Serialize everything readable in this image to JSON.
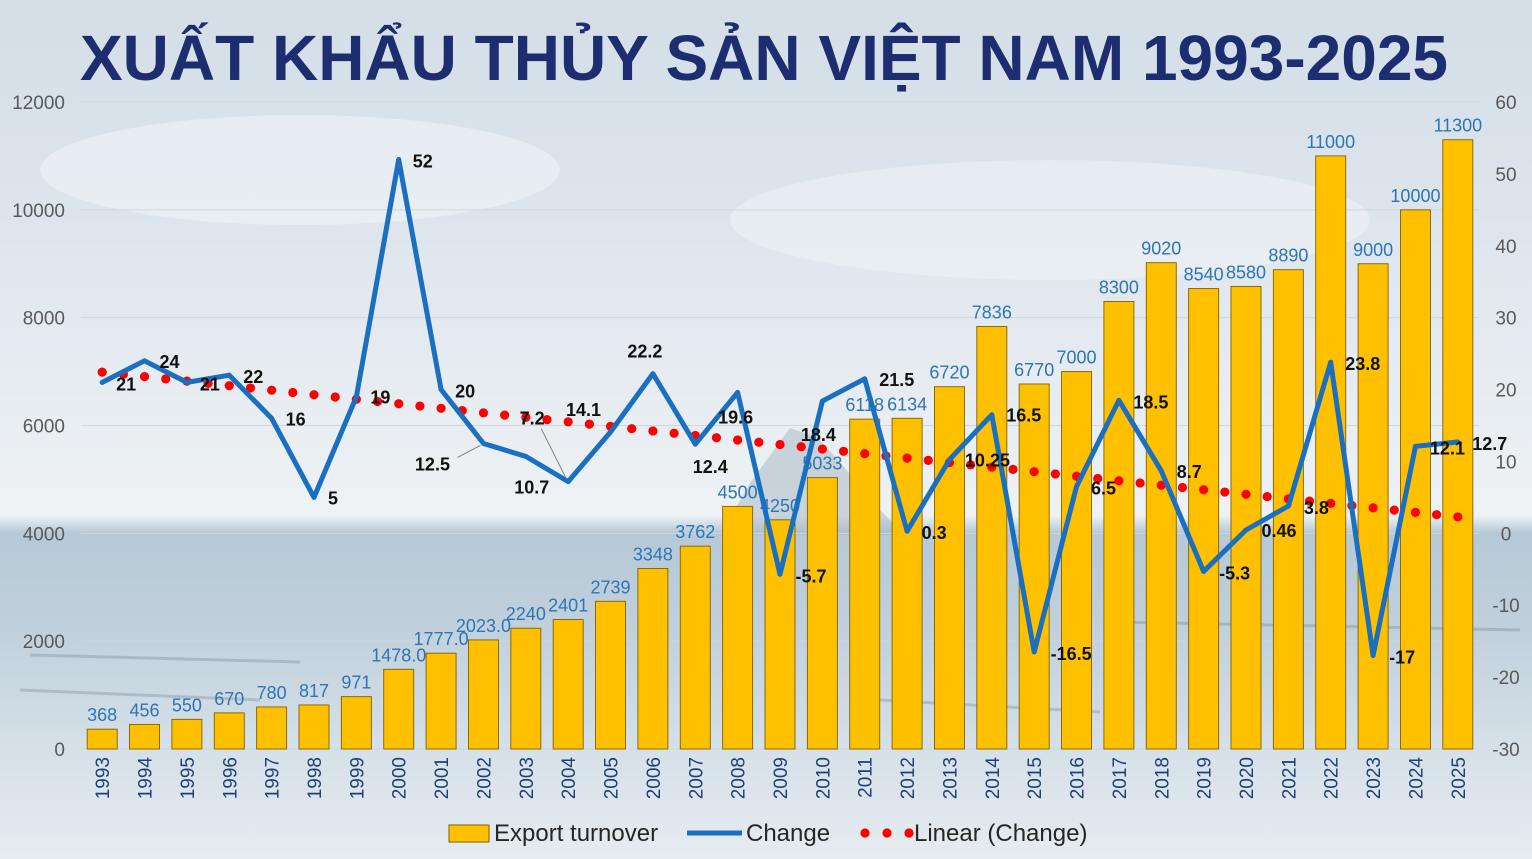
{
  "chart_data": {
    "type": "bar",
    "title": "XUẤT KHẨU THỦY SẢN VIỆT NAM 1993-2025",
    "categories": [
      "1993",
      "1994",
      "1995",
      "1996",
      "1997",
      "1998",
      "1999",
      "2000",
      "2001",
      "2002",
      "2003",
      "2004",
      "2005",
      "2006",
      "2007",
      "2008",
      "2009",
      "2010",
      "2011",
      "2012",
      "2013",
      "2014",
      "2015",
      "2016",
      "2017",
      "2018",
      "2019",
      "2020",
      "2021",
      "2022",
      "2023",
      "2024",
      "2025"
    ],
    "series": [
      {
        "name": "Export turnover",
        "type": "bar",
        "axis": "left",
        "color": "#FFC000",
        "values": [
          368,
          456,
          550,
          670,
          780,
          817,
          971,
          1478,
          1777,
          2023,
          2240,
          2401,
          2739,
          3348,
          3762,
          4500,
          4250,
          5033,
          6118,
          6134,
          6720,
          7836,
          6770,
          7000,
          8300,
          9020,
          8540,
          8580,
          8890,
          11000,
          9000,
          10000,
          11300
        ],
        "data_labels": [
          "368",
          "456",
          "550",
          "670",
          "780",
          "817",
          "971",
          "1478.0",
          "1777.0",
          "2023.0",
          "2240",
          "2401",
          "2739",
          "3348",
          "3762",
          "4500",
          "4250",
          "5033",
          "6118",
          "6134",
          "6720",
          "7836",
          "6770",
          "7000",
          "8300",
          "9020",
          "8540",
          "8580",
          "8890",
          "11000",
          "9000",
          "10000",
          "11300"
        ]
      },
      {
        "name": "Change",
        "type": "line",
        "axis": "right",
        "color": "#1A6FC0",
        "values": [
          21,
          24,
          21,
          22,
          16,
          5,
          19,
          52,
          20,
          12.5,
          10.7,
          7.2,
          14.1,
          22.2,
          12.4,
          19.6,
          -5.7,
          18.4,
          21.5,
          0.3,
          10.25,
          16.5,
          -16.5,
          6.5,
          18.5,
          8.7,
          -5.3,
          0.46,
          3.8,
          23.8,
          -17,
          12.1,
          12.7
        ]
      },
      {
        "name": "Linear (Change)",
        "type": "trendline",
        "of": "Change",
        "fit": "linear",
        "axis": "right",
        "color": "#FF0000",
        "style": "dotted"
      }
    ],
    "y_left": {
      "range": [
        0,
        12000
      ],
      "ticks": [
        0,
        2000,
        4000,
        6000,
        8000,
        10000,
        12000
      ]
    },
    "y_right": {
      "range": [
        -30,
        60
      ],
      "ticks": [
        -30,
        -20,
        -10,
        0,
        10,
        20,
        30,
        40,
        50,
        60
      ]
    },
    "grid": true,
    "legend": "bottom",
    "colors": {
      "title": "#1D2D6F",
      "bar_label": "#2E75B6",
      "point_label": "#111111",
      "axis_label": "#595959",
      "year_label": "#1F3F78",
      "gridline": "#CFD6DC",
      "bar_outline": "#7F6000",
      "leader_line": "#7F7F7F"
    }
  }
}
